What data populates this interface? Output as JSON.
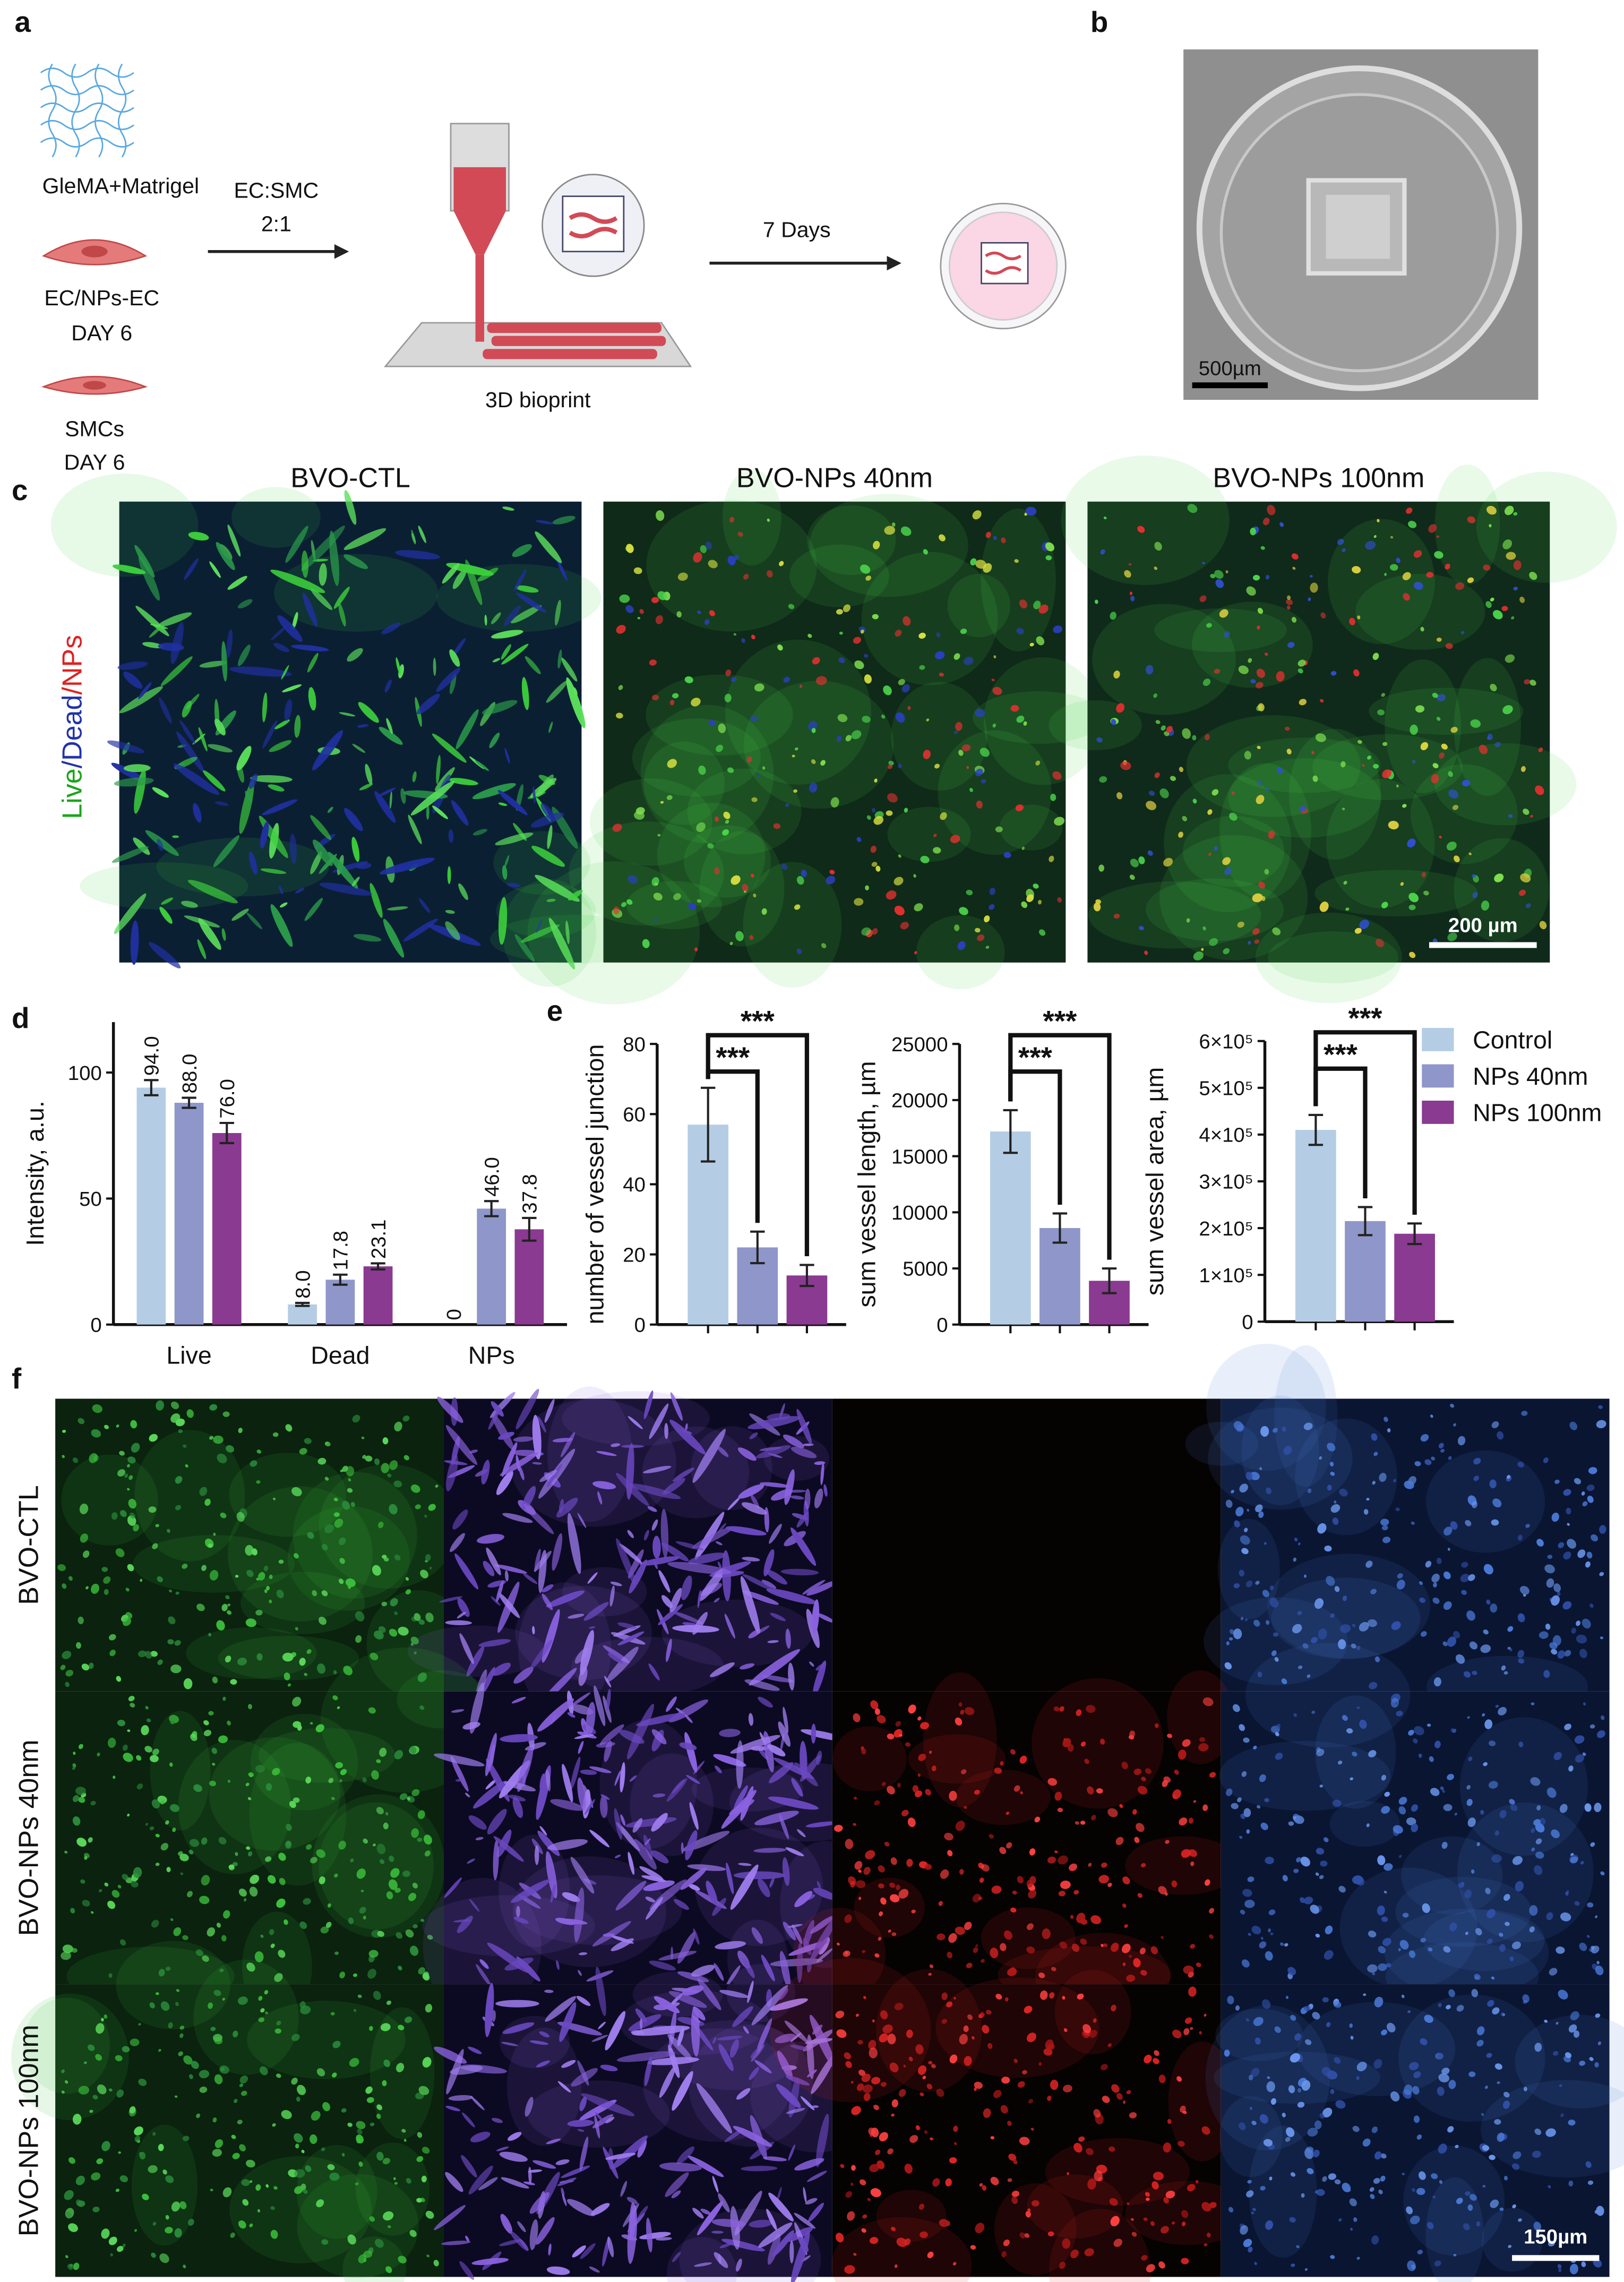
{
  "panel_labels": [
    "a",
    "b",
    "c",
    "d",
    "e",
    "f"
  ],
  "panel_a": {
    "materials": [
      [
        "GleMA+Matrigel"
      ],
      [
        "EC/NPs-EC",
        "DAY 6"
      ],
      [
        "SMCs",
        "DAY 6"
      ]
    ],
    "ratio": [
      "EC:SMC",
      "2:1"
    ],
    "step": "3D bioprint",
    "culture": "7 Days"
  },
  "panel_b": {
    "scale_bar": "500µm"
  },
  "panel_c": {
    "columns": [
      "BVO-CTL",
      "BVO-NPs 40nm",
      "BVO-NPs 100nm"
    ],
    "stain": [
      {
        "text": "Live",
        "color": "#1aa51a"
      },
      {
        "text": "/Dead",
        "color": "#2233aa"
      },
      {
        "text": "/NPs",
        "color": "#e02020"
      }
    ],
    "scale_bar": "200 µm"
  },
  "panel_f": {
    "rows": [
      "BVO-CTL",
      "BVO-NPs 40nm",
      "BVO-NPs 100nm"
    ],
    "scale_bar": "150µm"
  },
  "chart_data": [
    {
      "type": "bar",
      "ylabel": "Intensity, a.u.",
      "categories": [
        "Live",
        "Dead",
        "NPs"
      ],
      "series": [
        {
          "name": "Control",
          "color": "#b4cde4",
          "values": [
            94.0,
            8.0,
            0
          ],
          "errors": [
            3,
            0.6,
            0
          ],
          "value_labels": [
            "94.0",
            "8.0",
            "0"
          ]
        },
        {
          "name": "NPs 40nm",
          "color": "#8f96c9",
          "values": [
            88.0,
            17.8,
            46.0
          ],
          "errors": [
            2,
            2,
            3
          ],
          "value_labels": [
            "88.0",
            "17.8",
            "46.0"
          ]
        },
        {
          "name": "NPs 100nm",
          "color": "#8a3a90",
          "values": [
            76.0,
            23.1,
            37.8
          ],
          "errors": [
            4,
            1.2,
            4.5
          ],
          "value_labels": [
            "76.0",
            "23.1",
            "37.8"
          ]
        }
      ],
      "ylim": [
        0,
        120
      ],
      "yticks": [
        0,
        50,
        100
      ]
    },
    {
      "type": "bar",
      "ylabel": "number of vessel junction",
      "categories": [
        null,
        null,
        null
      ],
      "values": [
        57,
        22,
        14
      ],
      "errors": [
        10.5,
        4.5,
        3
      ],
      "colors": [
        "#b4cde4",
        "#8f96c9",
        "#8a3a90"
      ],
      "ylim": [
        0,
        80
      ],
      "yticks": [
        0,
        20,
        40,
        60,
        80
      ],
      "significance": [
        {
          "from": 0,
          "to": 1,
          "label": "***"
        },
        {
          "from": 0,
          "to": 2,
          "label": "***"
        }
      ]
    },
    {
      "type": "bar",
      "ylabel": "sum vessel length, µm",
      "categories": [
        null,
        null,
        null
      ],
      "values": [
        17200,
        8600,
        3900
      ],
      "errors": [
        1900,
        1300,
        1100
      ],
      "colors": [
        "#b4cde4",
        "#8f96c9",
        "#8a3a90"
      ],
      "ylim": [
        0,
        25000
      ],
      "yticks": [
        0,
        5000,
        10000,
        15000,
        20000,
        25000
      ],
      "significance": [
        {
          "from": 0,
          "to": 1,
          "label": "***"
        },
        {
          "from": 0,
          "to": 2,
          "label": "***"
        }
      ]
    },
    {
      "type": "bar",
      "ylabel": "sum vessel area, µm",
      "categories": [
        null,
        null,
        null
      ],
      "values": [
        410000,
        215000,
        188000
      ],
      "errors": [
        32000,
        30000,
        22000
      ],
      "colors": [
        "#b4cde4",
        "#8f96c9",
        "#8a3a90"
      ],
      "ylim": [
        0,
        600000
      ],
      "yticks": [
        0,
        {
          "value": 100000,
          "label": "1×10⁵"
        },
        {
          "value": 200000,
          "label": "2×10⁵"
        },
        {
          "value": 300000,
          "label": "3×10⁵"
        },
        {
          "value": 400000,
          "label": "4×10⁵"
        },
        {
          "value": 500000,
          "label": "5×10⁵"
        },
        {
          "value": 600000,
          "label": "6×10⁵"
        }
      ],
      "significance": [
        {
          "from": 0,
          "to": 1,
          "label": "***"
        },
        {
          "from": 0,
          "to": 2,
          "label": "***"
        }
      ]
    }
  ]
}
